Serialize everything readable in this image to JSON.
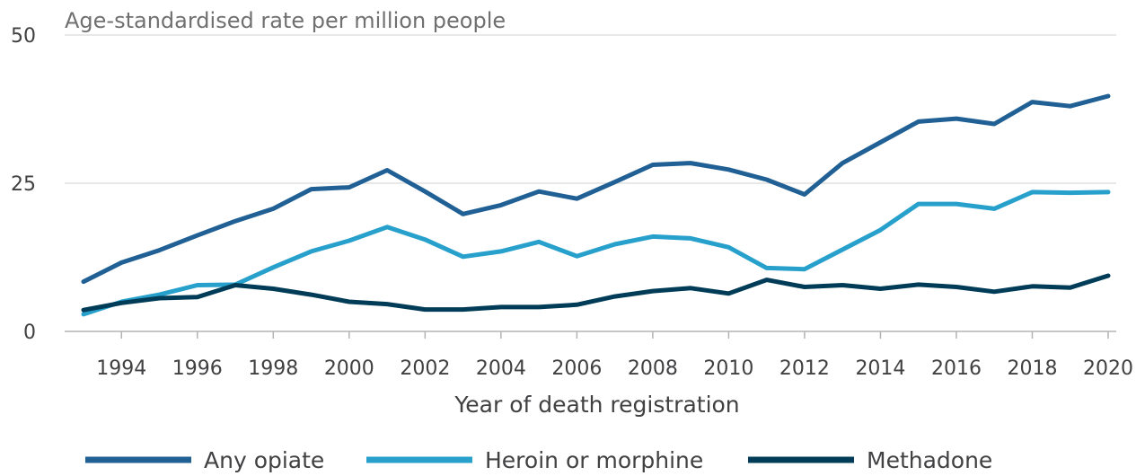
{
  "chart_data": {
    "type": "line",
    "title": "",
    "ylabel": "Age-standardised rate per million people",
    "xlabel": "Year of death registration",
    "ylim": [
      0,
      50
    ],
    "yticks": [
      "0",
      "25",
      "50"
    ],
    "xticks": [
      "1994",
      "1996",
      "1998",
      "2000",
      "2002",
      "2004",
      "2006",
      "2008",
      "2010",
      "2012",
      "2014",
      "2016",
      "2018",
      "2020"
    ],
    "grid": true,
    "legend_position": "bottom",
    "x": [
      1993,
      1994,
      1995,
      1996,
      1997,
      1998,
      1999,
      2000,
      2001,
      2002,
      2003,
      2004,
      2005,
      2006,
      2007,
      2008,
      2009,
      2010,
      2011,
      2012,
      2013,
      2014,
      2015,
      2016,
      2017,
      2018,
      2019,
      2020
    ],
    "series": [
      {
        "name": "Any opiate",
        "color": "#206095",
        "values": [
          8.4,
          11.6,
          13.7,
          16.2,
          18.6,
          20.7,
          24.0,
          24.3,
          27.2,
          23.6,
          19.8,
          21.3,
          23.6,
          22.4,
          25.2,
          28.1,
          28.4,
          27.3,
          25.6,
          23.1,
          28.4,
          31.9,
          35.4,
          35.9,
          35.0,
          38.7,
          38.0,
          39.7
        ]
      },
      {
        "name": "Heroin or morphine",
        "color": "#27a0cc",
        "values": [
          2.9,
          5.0,
          6.2,
          7.8,
          7.9,
          10.8,
          13.5,
          15.3,
          17.6,
          15.5,
          12.6,
          13.5,
          15.1,
          12.7,
          14.7,
          16.0,
          15.7,
          14.2,
          10.7,
          10.5,
          13.8,
          17.1,
          21.5,
          21.5,
          20.7,
          23.5,
          23.4,
          23.5
        ]
      },
      {
        "name": "Methadone",
        "color": "#003c57",
        "values": [
          3.6,
          4.8,
          5.6,
          5.8,
          7.8,
          7.2,
          6.2,
          5.0,
          4.6,
          3.7,
          3.7,
          4.1,
          4.1,
          4.5,
          5.9,
          6.8,
          7.3,
          6.4,
          8.7,
          7.5,
          7.8,
          7.2,
          7.9,
          7.5,
          6.7,
          7.6,
          7.4,
          9.4
        ]
      }
    ]
  }
}
